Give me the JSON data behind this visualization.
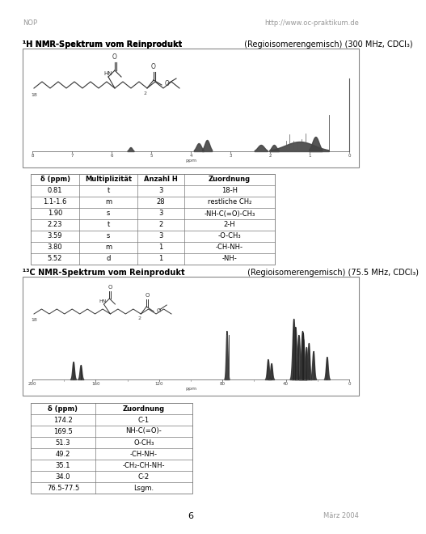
{
  "header_left": "NOP",
  "header_right": "http://www.oc-praktikum.de",
  "title1_bold": "¹H NMR-Spektrum vom Reinprodukt",
  "title1_normal": " (Regioisomerengemisch) (300 MHz, CDCl₃)",
  "title2_bold": "¹³C NMR-Spektrum vom Reinprodukt",
  "title2_normal": " (Regioisomerengemisch) (75.5 MHz, CDCl₃)",
  "table1_headers": [
    "δ (ppm)",
    "Multiplizität",
    "Anzahl H",
    "Zuordnung"
  ],
  "table1_rows": [
    [
      "0.81",
      "t",
      "3",
      "18-H"
    ],
    [
      "1.1-1.6",
      "m",
      "28",
      "restliche CH₂"
    ],
    [
      "1.90",
      "s",
      "3",
      "-NH-C(=O)-CH₃"
    ],
    [
      "2.23",
      "t",
      "2",
      "2-H"
    ],
    [
      "3.59",
      "s",
      "3",
      "-O-CH₃"
    ],
    [
      "3.80",
      "m",
      "1",
      "-CH-NH-"
    ],
    [
      "5.52",
      "d",
      "1",
      "-NH-"
    ]
  ],
  "table2_headers": [
    "δ (ppm)",
    "Zuordnung"
  ],
  "table2_rows": [
    [
      "174.2",
      "C-1"
    ],
    [
      "169.5",
      "NH-C(=O)-"
    ],
    [
      "51.3",
      "O-CH₃"
    ],
    [
      "49.2",
      "-CH-NH-"
    ],
    [
      "35.1",
      "-CH₂-CH-NH-"
    ],
    [
      "34.0",
      "C-2"
    ],
    [
      "76.5-77.5",
      "Lsgm."
    ]
  ],
  "footer_center": "6",
  "footer_right": "März 2004",
  "bg_color": "#ffffff"
}
